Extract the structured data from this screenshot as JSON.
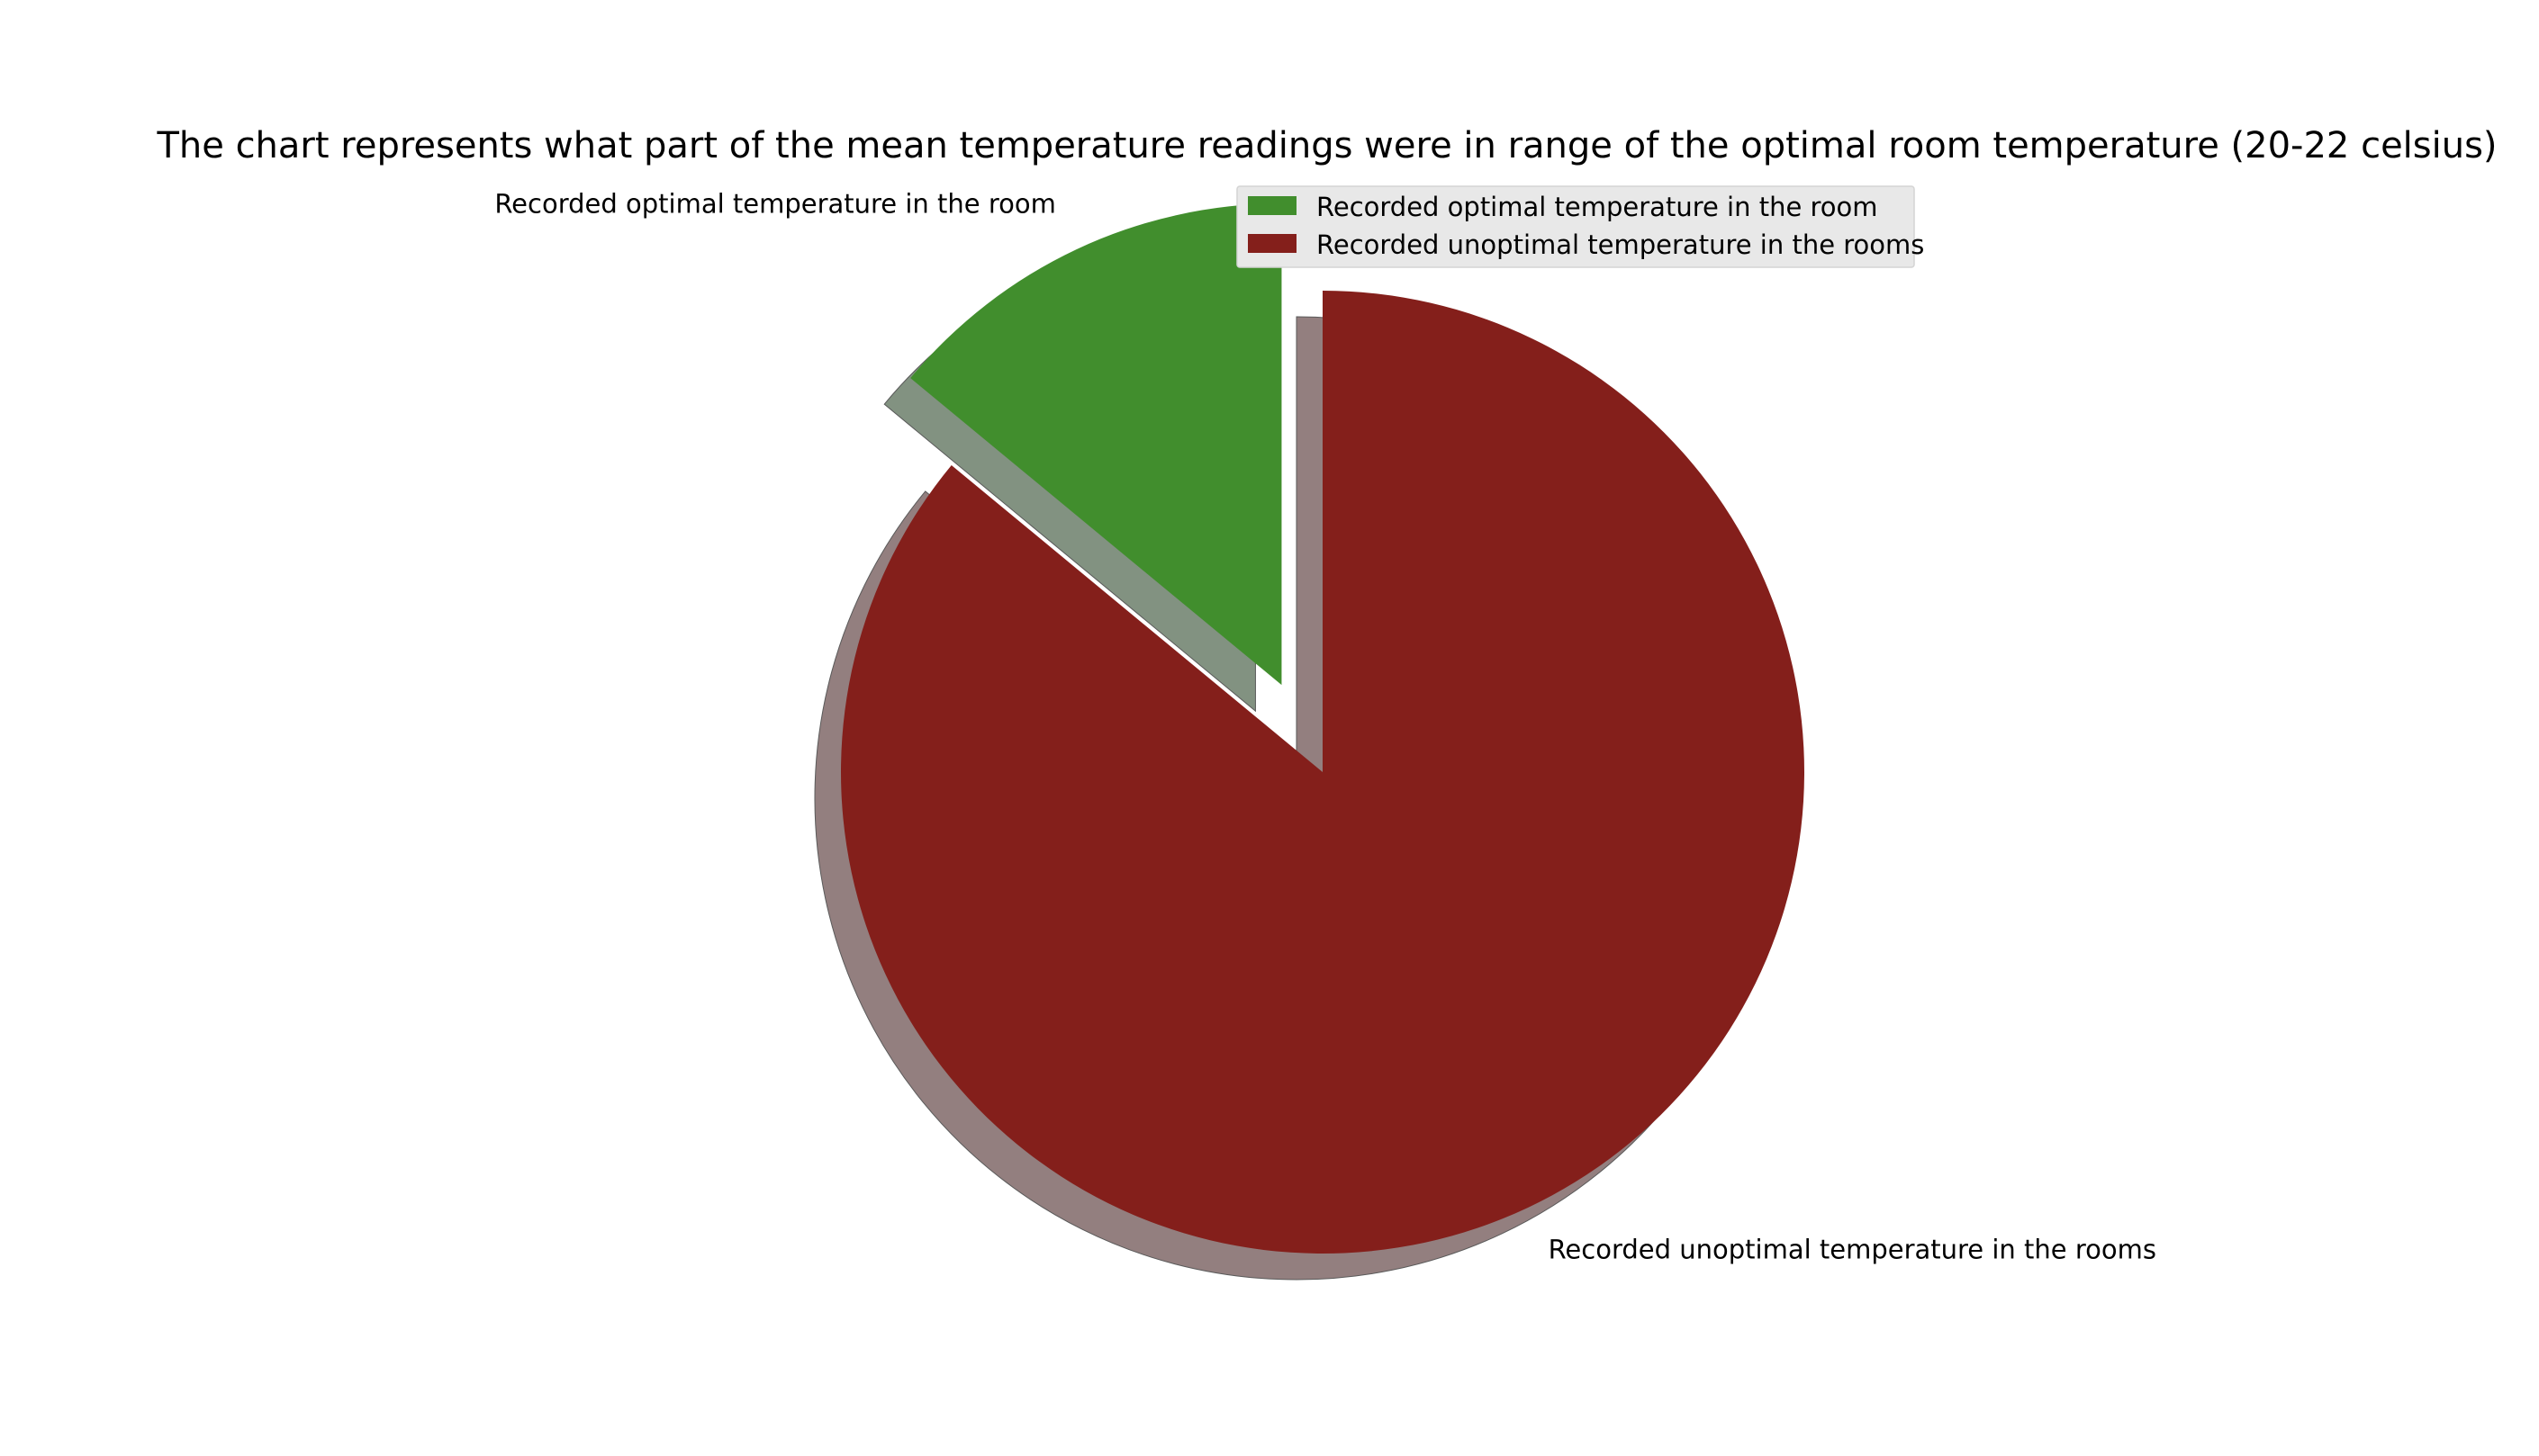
{
  "chart_data": {
    "type": "pie",
    "title": "The chart represents what part of the mean temperature readings were in range of the optimal room temperature  (20-22 celsius)",
    "categories": [
      "Recorded optimal temperature in the room",
      "Recorded unoptimal temperature in the rooms"
    ],
    "values": [
      14,
      86
    ],
    "colors": [
      "#418e2d",
      "#841f1b"
    ],
    "shadow_colors": [
      "#829281",
      "#937f7f"
    ],
    "exploded": [
      true,
      false
    ],
    "shadow": true,
    "start_angle_deg": 90,
    "direction": "counterclockwise",
    "legend": {
      "placement": "top-right",
      "entries": [
        "Recorded optimal temperature in the room",
        "Recorded unoptimal temperature in the rooms"
      ]
    }
  }
}
